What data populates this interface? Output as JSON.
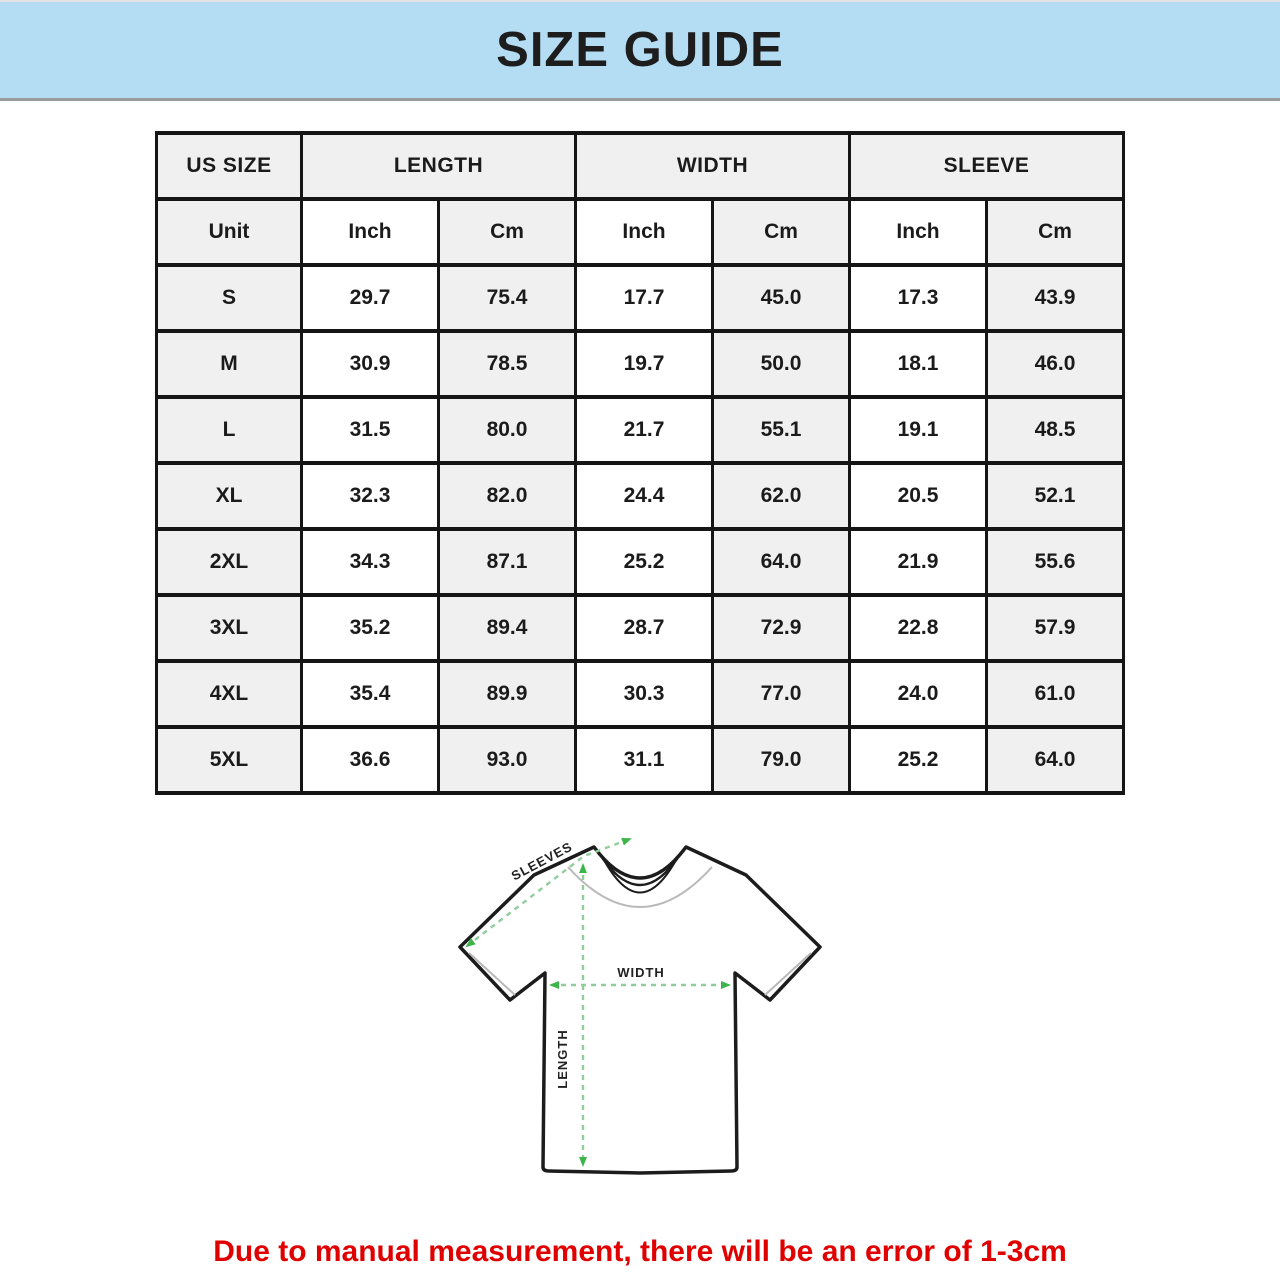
{
  "header": {
    "title": "SIZE GUIDE"
  },
  "table": {
    "group_headers": [
      {
        "label": "US SIZE"
      },
      {
        "label": "LENGTH"
      },
      {
        "label": "WIDTH"
      },
      {
        "label": "SLEEVE"
      }
    ],
    "unit_row": [
      "Unit",
      "Inch",
      "Cm",
      "Inch",
      "Cm",
      "Inch",
      "Cm"
    ],
    "rows": [
      {
        "size": "S",
        "values": [
          "29.7",
          "75.4",
          "17.7",
          "45.0",
          "17.3",
          "43.9"
        ]
      },
      {
        "size": "M",
        "values": [
          "30.9",
          "78.5",
          "19.7",
          "50.0",
          "18.1",
          "46.0"
        ]
      },
      {
        "size": "L",
        "values": [
          "31.5",
          "80.0",
          "21.7",
          "55.1",
          "19.1",
          "48.5"
        ]
      },
      {
        "size": "XL",
        "values": [
          "32.3",
          "82.0",
          "24.4",
          "62.0",
          "20.5",
          "52.1"
        ]
      },
      {
        "size": "2XL",
        "values": [
          "34.3",
          "87.1",
          "25.2",
          "64.0",
          "21.9",
          "55.6"
        ]
      },
      {
        "size": "3XL",
        "values": [
          "35.2",
          "89.4",
          "28.7",
          "72.9",
          "22.8",
          "57.9"
        ]
      },
      {
        "size": "4XL",
        "values": [
          "35.4",
          "89.9",
          "30.3",
          "77.0",
          "24.0",
          "61.0"
        ]
      },
      {
        "size": "5XL",
        "values": [
          "36.6",
          "93.0",
          "31.1",
          "79.0",
          "25.2",
          "64.0"
        ]
      }
    ]
  },
  "diagram": {
    "labels": {
      "sleeves": "SLEEVES",
      "width": "WIDTH",
      "length": "LENGTH"
    }
  },
  "footer": {
    "note": "Due to manual measurement, there will be an error of 1-3cm"
  },
  "theme": {
    "banner_background": "#b4dcf3",
    "banner_border": "#9b9b9b",
    "table_border": "#151515",
    "cell_gray": "#f0f0f0",
    "cell_white": "#ffffff",
    "text_dark": "#1b1b1b",
    "measure_line_green": "#8fce9b",
    "measure_arrow_green": "#3eb54a",
    "shirt_outline": "#1c1c1c",
    "shirt_accent_gray": "#b9b9b9",
    "note_red": "#e10000"
  }
}
